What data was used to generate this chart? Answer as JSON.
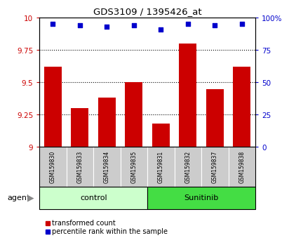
{
  "title": "GDS3109 / 1395426_at",
  "samples": [
    "GSM159830",
    "GSM159833",
    "GSM159834",
    "GSM159835",
    "GSM159831",
    "GSM159832",
    "GSM159837",
    "GSM159838"
  ],
  "bar_values": [
    9.62,
    9.3,
    9.38,
    9.5,
    9.18,
    9.8,
    9.45,
    9.62
  ],
  "percentile_values": [
    95,
    94,
    93,
    94,
    91,
    95,
    94,
    95
  ],
  "bar_color": "#cc0000",
  "dot_color": "#0000cc",
  "ylim_left": [
    9,
    10
  ],
  "ylim_right": [
    0,
    100
  ],
  "yticks_left": [
    9,
    9.25,
    9.5,
    9.75,
    10
  ],
  "yticks_right": [
    0,
    25,
    50,
    75,
    100
  ],
  "ytick_labels_right": [
    "0",
    "25",
    "50",
    "75",
    "100%"
  ],
  "grid_lines": [
    9.25,
    9.5,
    9.75
  ],
  "groups": [
    {
      "label": "control",
      "indices": [
        0,
        3
      ],
      "color": "#ccffcc"
    },
    {
      "label": "Sunitinib",
      "indices": [
        4,
        7
      ],
      "color": "#44dd44"
    }
  ],
  "legend_red_label": "transformed count",
  "legend_blue_label": "percentile rank within the sample",
  "plot_bg": "#ffffff",
  "title_color": "#000000",
  "left_tick_color": "#cc0000",
  "right_tick_color": "#0000cc",
  "sample_box_color": "#cccccc",
  "agent_arrow_color": "#888888"
}
